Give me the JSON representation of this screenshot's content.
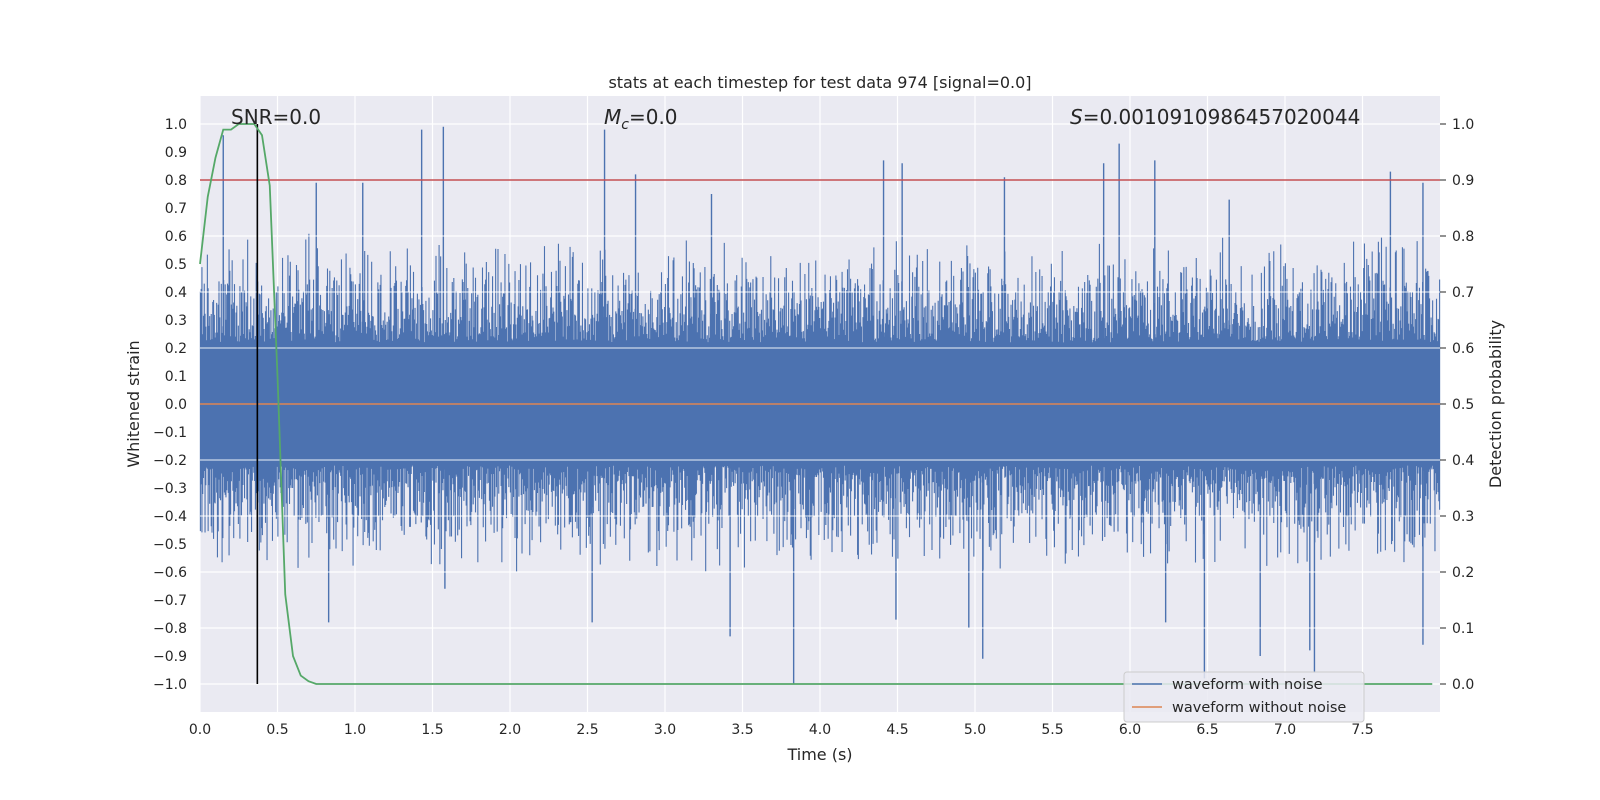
{
  "chart_data": {
    "type": "line",
    "title": "stats at each timestep for test data 974 [signal=0.0]",
    "xlabel": "Time (s)",
    "ylabel_left": "Whitened strain",
    "ylabel_right": "Detection probability",
    "xlim": [
      0.0,
      8.0
    ],
    "ylim_left": [
      -1.1,
      1.1
    ],
    "ylim_right": [
      -0.05,
      1.05
    ],
    "x_ticks": [
      "0.0",
      "0.5",
      "1.0",
      "1.5",
      "2.0",
      "2.5",
      "3.0",
      "3.5",
      "4.0",
      "4.5",
      "5.0",
      "5.5",
      "6.0",
      "6.5",
      "7.0",
      "7.5"
    ],
    "x_tick_values": [
      0.0,
      0.5,
      1.0,
      1.5,
      2.0,
      2.5,
      3.0,
      3.5,
      4.0,
      4.5,
      5.0,
      5.5,
      6.0,
      6.5,
      7.0,
      7.5
    ],
    "y_left_ticks": [
      "1.0",
      "0.9",
      "0.8",
      "0.7",
      "0.6",
      "0.5",
      "0.4",
      "0.3",
      "0.2",
      "0.1",
      "0.0",
      "−0.1",
      "−0.2",
      "−0.3",
      "−0.4",
      "−0.5",
      "−0.6",
      "−0.7",
      "−0.8",
      "−0.9",
      "−1.0"
    ],
    "y_left_tick_values": [
      1.0,
      0.9,
      0.8,
      0.7,
      0.6,
      0.5,
      0.4,
      0.3,
      0.2,
      0.1,
      0.0,
      -0.1,
      -0.2,
      -0.3,
      -0.4,
      -0.5,
      -0.6,
      -0.7,
      -0.8,
      -0.9,
      -1.0
    ],
    "y_right_ticks": [
      "1.0",
      "0.9",
      "0.8",
      "0.7",
      "0.6",
      "0.5",
      "0.4",
      "0.3",
      "0.2",
      "0.1",
      "0.0"
    ],
    "y_right_tick_values": [
      1.0,
      0.9,
      0.8,
      0.7,
      0.6,
      0.5,
      0.4,
      0.3,
      0.2,
      0.1,
      0.0
    ],
    "annotations": {
      "snr": "SNR=0.0",
      "mc_symbol": "M",
      "mc_sub": "c",
      "mc_value": "=0.0",
      "s_symbol": "S",
      "s_value": "=0.0010910986457020044"
    },
    "threshold": {
      "value": 0.9,
      "axis": "right",
      "color": "#c44e52"
    },
    "marker_line": {
      "x": 0.37,
      "from": -1.0,
      "to": 1.0,
      "color": "#000000"
    },
    "noise_envelope": {
      "sample_rate_display": 1600,
      "seed": 974,
      "core_amplitude": 0.22,
      "typical_peak": 0.5,
      "max_peak": 1.0,
      "color": "#4c72b0"
    },
    "series": [
      {
        "name": "waveform with noise",
        "color": "#4c72b0",
        "axis": "left",
        "spikes_pos": [
          [
            0.15,
            0.96
          ],
          [
            1.43,
            0.98
          ],
          [
            1.57,
            0.99
          ],
          [
            2.61,
            0.98
          ],
          [
            2.81,
            0.82
          ],
          [
            4.41,
            0.87
          ],
          [
            4.53,
            0.86
          ],
          [
            5.19,
            0.81
          ],
          [
            5.83,
            0.86
          ],
          [
            5.93,
            0.93
          ],
          [
            6.16,
            0.87
          ],
          [
            7.68,
            0.83
          ],
          [
            7.89,
            0.79
          ],
          [
            0.75,
            0.79
          ],
          [
            1.05,
            0.79
          ],
          [
            3.3,
            0.75
          ],
          [
            6.64,
            0.73
          ]
        ],
        "spikes_neg": [
          [
            3.83,
            -1.0
          ],
          [
            6.48,
            -0.98
          ],
          [
            7.19,
            -0.96
          ],
          [
            5.05,
            -0.91
          ],
          [
            6.84,
            -0.9
          ],
          [
            3.42,
            -0.83
          ],
          [
            7.89,
            -0.86
          ],
          [
            2.53,
            -0.78
          ],
          [
            0.83,
            -0.78
          ],
          [
            4.96,
            -0.8
          ],
          [
            7.16,
            -0.88
          ],
          [
            1.58,
            -0.66
          ],
          [
            6.23,
            -0.78
          ],
          [
            4.49,
            -0.77
          ]
        ]
      },
      {
        "name": "waveform without noise",
        "color": "#dd8452",
        "axis": "left",
        "x": [
          0.0,
          8.0
        ],
        "y": [
          0.0,
          0.0
        ]
      },
      {
        "name": "detection probability",
        "color": "#55a868",
        "axis": "right",
        "x": [
          0.0,
          0.05,
          0.1,
          0.15,
          0.2,
          0.25,
          0.3,
          0.35,
          0.4,
          0.45,
          0.5,
          0.55,
          0.6,
          0.65,
          0.7,
          0.75,
          0.8,
          1.0,
          2.0,
          3.0,
          4.0,
          5.0,
          6.0,
          7.0,
          7.4,
          7.6,
          7.8,
          7.95
        ],
        "y": [
          0.75,
          0.87,
          0.94,
          0.99,
          0.99,
          1.0,
          1.0,
          1.0,
          0.98,
          0.89,
          0.55,
          0.16,
          0.05,
          0.015,
          0.005,
          0.0,
          0.0,
          0.0,
          0.0,
          0.0,
          0.0,
          0.0,
          0.0,
          0.0,
          0.0,
          0.0,
          0.0,
          0.0
        ]
      }
    ],
    "legend": {
      "placement": "bottom-right",
      "entries": [
        {
          "label": "waveform with noise",
          "color": "#4c72b0"
        },
        {
          "label": "waveform without noise",
          "color": "#dd8452"
        }
      ]
    },
    "style": {
      "background": "#eaeaf2",
      "grid": true,
      "grid_color": "#ffffff"
    }
  }
}
